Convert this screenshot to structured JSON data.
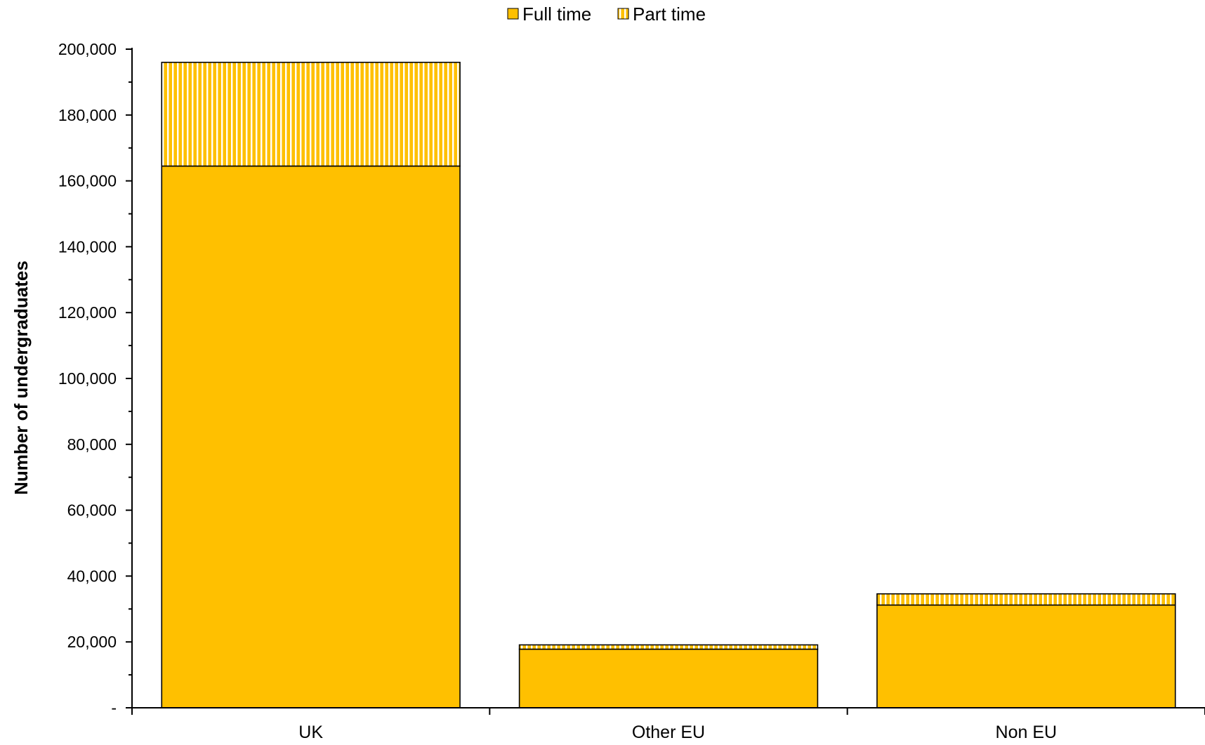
{
  "chart_data": {
    "type": "bar",
    "stacked": true,
    "categories": [
      "UK",
      "Other EU",
      "Non EU"
    ],
    "series": [
      {
        "name": "Full time",
        "values": [
          164500,
          17800,
          31200
        ],
        "color": "#FFC000",
        "pattern": "solid"
      },
      {
        "name": "Part time",
        "values": [
          31500,
          1300,
          3400
        ],
        "color": "#FFC000",
        "pattern": "vertical-stripes"
      }
    ],
    "title": "",
    "xlabel": "",
    "ylabel": "Number of undergraduates",
    "ylim": [
      0,
      200000
    ],
    "y_tick_labels": [
      "-",
      "20,000",
      "40,000",
      "60,000",
      "80,000",
      "100,000",
      "120,000",
      "140,000",
      "160,000",
      "180,000",
      "200,000"
    ],
    "grid": false,
    "legend_position": "top-center"
  }
}
